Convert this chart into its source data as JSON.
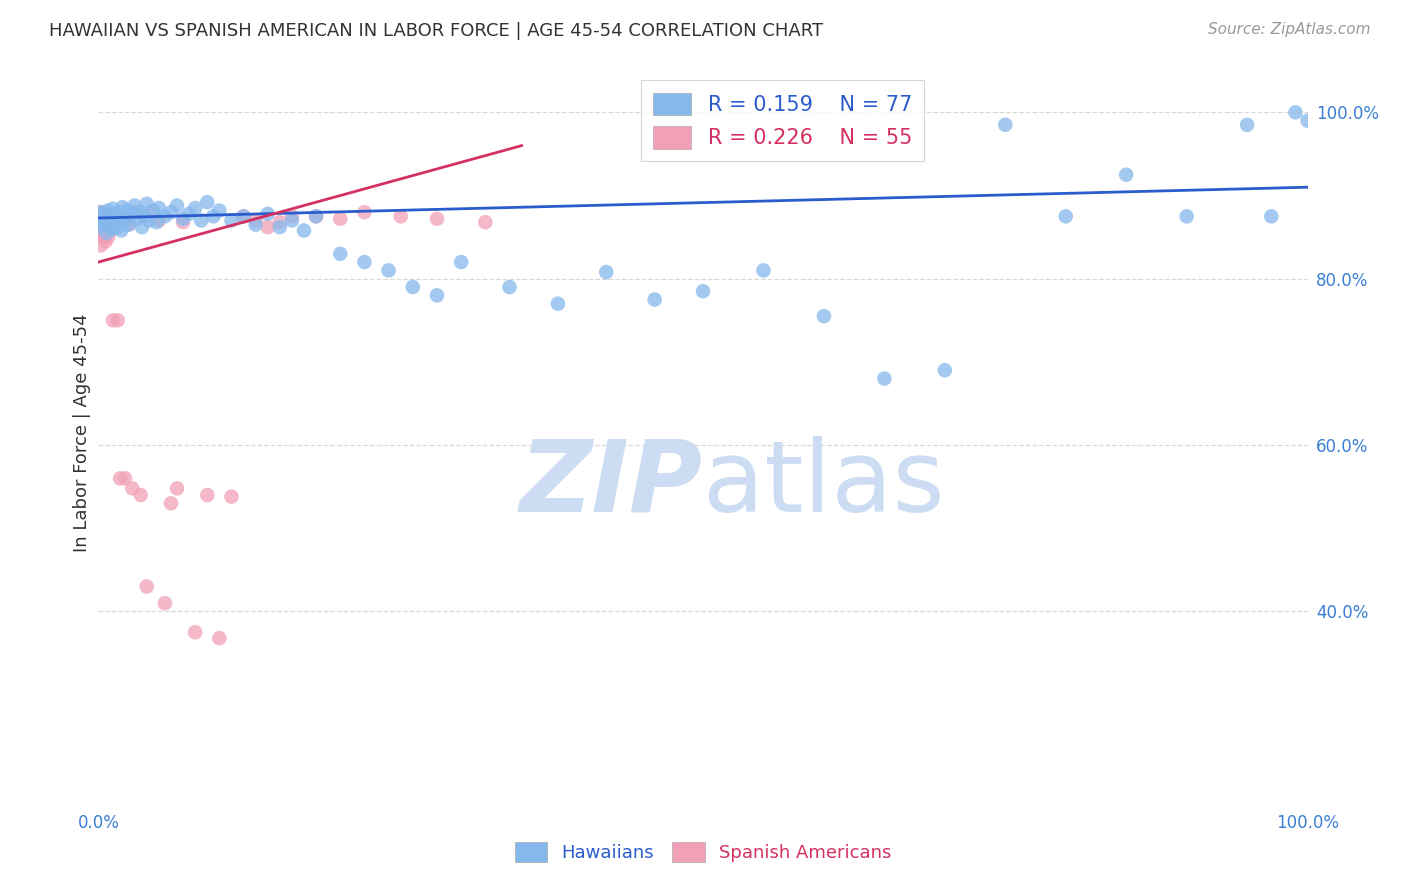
{
  "title": "HAWAIIAN VS SPANISH AMERICAN IN LABOR FORCE | AGE 45-54 CORRELATION CHART",
  "source": "Source: ZipAtlas.com",
  "ylabel": "In Labor Force | Age 45-54",
  "ytick_labels": [
    "100.0%",
    "80.0%",
    "60.0%",
    "40.0%"
  ],
  "ytick_values": [
    1.0,
    0.8,
    0.6,
    0.4
  ],
  "xlim": [
    0.0,
    1.0
  ],
  "ylim": [
    0.17,
    1.06
  ],
  "legend_blue_r": "0.159",
  "legend_blue_n": "77",
  "legend_pink_r": "0.226",
  "legend_pink_n": "55",
  "blue_color": "#85b8ed",
  "pink_color": "#f2a0b8",
  "blue_line_color": "#2a5ccc",
  "pink_line_color": "#d43060",
  "watermark_color": "#ccdcf2",
  "background_color": "#ffffff",
  "grid_color": "#d8d8d8",
  "hawaiians_x": [
    0.0,
    0.0,
    0.002,
    0.003,
    0.004,
    0.005,
    0.006,
    0.007,
    0.008,
    0.009,
    0.01,
    0.011,
    0.012,
    0.013,
    0.014,
    0.015,
    0.016,
    0.017,
    0.018,
    0.019,
    0.02,
    0.022,
    0.023,
    0.024,
    0.025,
    0.028,
    0.03,
    0.032,
    0.034,
    0.036,
    0.038,
    0.04,
    0.042,
    0.045,
    0.048,
    0.05,
    0.055,
    0.06,
    0.065,
    0.07,
    0.075,
    0.08,
    0.085,
    0.09,
    0.095,
    0.1,
    0.11,
    0.12,
    0.13,
    0.14,
    0.15,
    0.16,
    0.17,
    0.18,
    0.2,
    0.22,
    0.24,
    0.26,
    0.28,
    0.3,
    0.34,
    0.38,
    0.42,
    0.46,
    0.5,
    0.55,
    0.6,
    0.65,
    0.7,
    0.75,
    0.8,
    0.85,
    0.9,
    0.95,
    0.97,
    0.99,
    1.0
  ],
  "hawaiians_y": [
    0.875,
    0.862,
    0.88,
    0.868,
    0.872,
    0.865,
    0.878,
    0.855,
    0.882,
    0.87,
    0.876,
    0.86,
    0.884,
    0.872,
    0.866,
    0.878,
    0.862,
    0.874,
    0.88,
    0.858,
    0.886,
    0.87,
    0.875,
    0.882,
    0.865,
    0.878,
    0.888,
    0.872,
    0.88,
    0.862,
    0.875,
    0.89,
    0.87,
    0.882,
    0.868,
    0.885,
    0.875,
    0.88,
    0.888,
    0.872,
    0.878,
    0.885,
    0.87,
    0.892,
    0.875,
    0.882,
    0.87,
    0.875,
    0.865,
    0.878,
    0.862,
    0.87,
    0.858,
    0.875,
    0.83,
    0.82,
    0.81,
    0.79,
    0.78,
    0.82,
    0.79,
    0.77,
    0.808,
    0.775,
    0.785,
    0.81,
    0.755,
    0.68,
    0.69,
    0.985,
    0.875,
    0.925,
    0.875,
    0.985,
    0.875,
    1.0,
    0.99
  ],
  "spanish_x": [
    0.0,
    0.0,
    0.001,
    0.001,
    0.002,
    0.002,
    0.003,
    0.003,
    0.004,
    0.004,
    0.005,
    0.005,
    0.006,
    0.006,
    0.007,
    0.007,
    0.008,
    0.008,
    0.009,
    0.01,
    0.01,
    0.011,
    0.012,
    0.013,
    0.015,
    0.016,
    0.018,
    0.02,
    0.022,
    0.025,
    0.028,
    0.03,
    0.035,
    0.04,
    0.045,
    0.05,
    0.055,
    0.06,
    0.065,
    0.07,
    0.08,
    0.09,
    0.1,
    0.11,
    0.12,
    0.13,
    0.14,
    0.15,
    0.16,
    0.18,
    0.2,
    0.22,
    0.25,
    0.28,
    0.32
  ],
  "spanish_y": [
    0.875,
    0.862,
    0.855,
    0.88,
    0.868,
    0.84,
    0.875,
    0.855,
    0.862,
    0.878,
    0.85,
    0.868,
    0.858,
    0.845,
    0.875,
    0.862,
    0.87,
    0.85,
    0.865,
    0.875,
    0.858,
    0.862,
    0.75,
    0.868,
    0.87,
    0.75,
    0.56,
    0.872,
    0.56,
    0.865,
    0.548,
    0.88,
    0.54,
    0.43,
    0.88,
    0.87,
    0.41,
    0.53,
    0.548,
    0.868,
    0.375,
    0.54,
    0.368,
    0.538,
    0.875,
    0.87,
    0.862,
    0.868,
    0.875,
    0.875,
    0.872,
    0.88,
    0.875,
    0.872,
    0.868
  ],
  "blue_line_x0": 0.0,
  "blue_line_y0": 0.873,
  "blue_line_x1": 1.0,
  "blue_line_y1": 0.91,
  "pink_line_x0": 0.0,
  "pink_line_y0": 0.82,
  "pink_line_x1": 0.35,
  "pink_line_y1": 0.96
}
